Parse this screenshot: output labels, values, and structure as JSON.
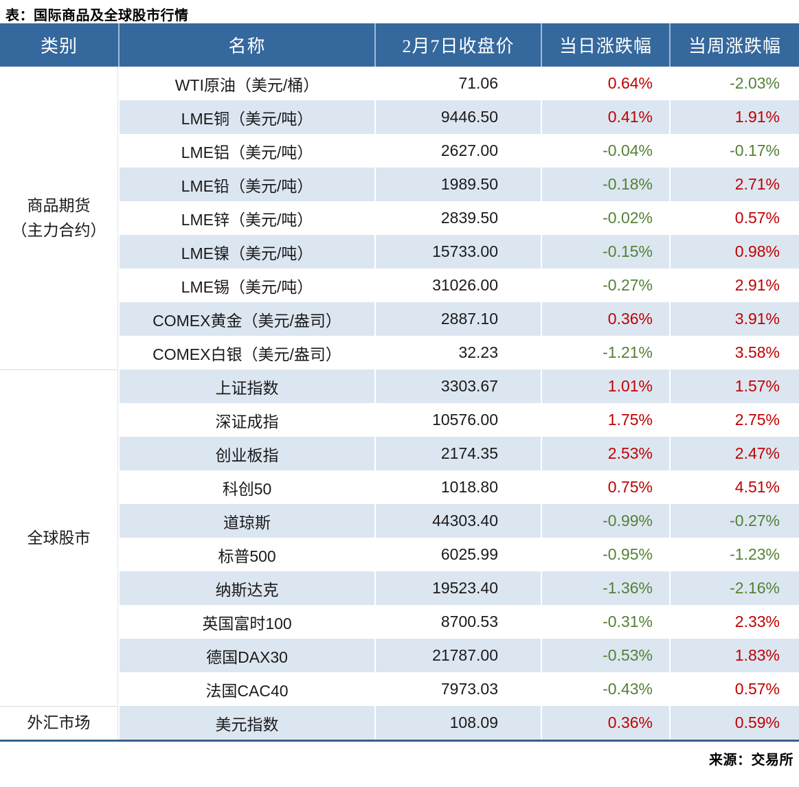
{
  "chart_data": {
    "type": "table",
    "title": "表：国际商品及全球股市行情",
    "source": "来源：交易所",
    "columns": {
      "category": "类别",
      "name": "名称",
      "price": "2月7日收盘价",
      "daily": "当日涨跌幅",
      "weekly": "当周涨跌幅"
    },
    "categories": {
      "futures": "商品期货\n（主力合约）",
      "stocks": "全球股市",
      "forex": "外汇市场"
    },
    "rows": [
      {
        "name": "WTI原油（美元/桶）",
        "price": "71.06",
        "daily": "0.64%",
        "weekly": "-2.03%"
      },
      {
        "name": "LME铜（美元/吨）",
        "price": "9446.50",
        "daily": "0.41%",
        "weekly": "1.91%"
      },
      {
        "name": "LME铝（美元/吨）",
        "price": "2627.00",
        "daily": "-0.04%",
        "weekly": "-0.17%"
      },
      {
        "name": "LME铅（美元/吨）",
        "price": "1989.50",
        "daily": "-0.18%",
        "weekly": "2.71%"
      },
      {
        "name": "LME锌（美元/吨）",
        "price": "2839.50",
        "daily": "-0.02%",
        "weekly": "0.57%"
      },
      {
        "name": "LME镍（美元/吨）",
        "price": "15733.00",
        "daily": "-0.15%",
        "weekly": "0.98%"
      },
      {
        "name": "LME锡（美元/吨）",
        "price": "31026.00",
        "daily": "-0.27%",
        "weekly": "2.91%"
      },
      {
        "name": "COMEX黄金（美元/盎司）",
        "price": "2887.10",
        "daily": "0.36%",
        "weekly": "3.91%"
      },
      {
        "name": "COMEX白银（美元/盎司）",
        "price": "32.23",
        "daily": "-1.21%",
        "weekly": "3.58%"
      },
      {
        "name": "上证指数",
        "price": "3303.67",
        "daily": "1.01%",
        "weekly": "1.57%"
      },
      {
        "name": "深证成指",
        "price": "10576.00",
        "daily": "1.75%",
        "weekly": "2.75%"
      },
      {
        "name": "创业板指",
        "price": "2174.35",
        "daily": "2.53%",
        "weekly": "2.47%"
      },
      {
        "name": "科创50",
        "price": "1018.80",
        "daily": "0.75%",
        "weekly": "4.51%"
      },
      {
        "name": "道琼斯",
        "price": "44303.40",
        "daily": "-0.99%",
        "weekly": "-0.27%"
      },
      {
        "name": "标普500",
        "price": "6025.99",
        "daily": "-0.95%",
        "weekly": "-1.23%"
      },
      {
        "name": "纳斯达克",
        "price": "19523.40",
        "daily": "-1.36%",
        "weekly": "-2.16%"
      },
      {
        "name": "英国富时100",
        "price": "8700.53",
        "daily": "-0.31%",
        "weekly": "2.33%"
      },
      {
        "name": "德国DAX30",
        "price": "21787.00",
        "daily": "-0.53%",
        "weekly": "1.83%"
      },
      {
        "name": "法国CAC40",
        "price": "7973.03",
        "daily": "-0.43%",
        "weekly": "0.57%"
      },
      {
        "name": "美元指数",
        "price": "108.09",
        "daily": "0.36%",
        "weekly": "0.59%"
      }
    ],
    "layout_hints": {
      "group_row_spans": {
        "futures": 9,
        "stocks": 10,
        "forex": 1
      },
      "striped_rows": "alternating, second row shaded"
    }
  },
  "colors": {
    "header_bg": "#35689D",
    "row_stripe": "#DCE6F1",
    "positive_change": "#C00000",
    "negative_change": "#538135",
    "table_bottom_border": "#35618C"
  }
}
